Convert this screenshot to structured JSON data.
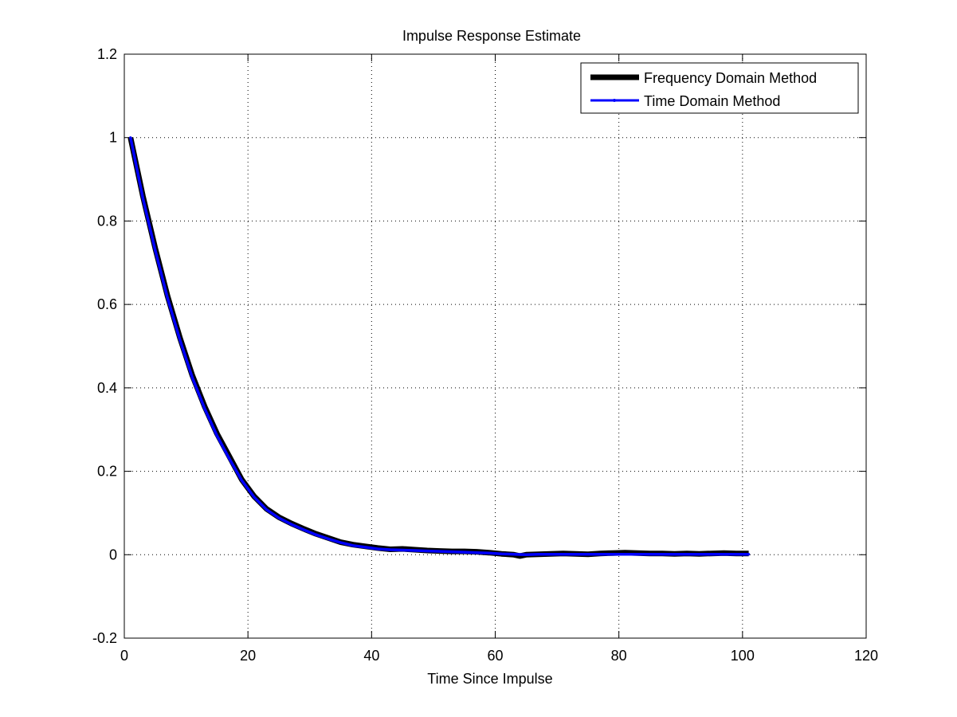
{
  "chart_data": {
    "type": "line",
    "title": "Impulse Response Estimate",
    "xlabel": "Time Since Impulse",
    "ylabel": "",
    "xlim": [
      0,
      120
    ],
    "ylim": [
      -0.2,
      1.2
    ],
    "xticks": [
      "0",
      "20",
      "40",
      "60",
      "80",
      "100",
      "120"
    ],
    "yticks": [
      "-0.2",
      "0",
      "0.2",
      "0.4",
      "0.6",
      "0.8",
      "1",
      "1.2"
    ],
    "grid": true,
    "legend_position": "top-right",
    "series": [
      {
        "name": "Frequency Domain Method",
        "color": "#000000",
        "x": [
          1,
          3,
          5,
          7,
          9,
          11,
          13,
          15,
          17,
          19,
          21,
          23,
          25,
          27,
          29,
          31,
          33,
          35,
          37,
          39,
          41,
          43,
          45,
          47,
          49,
          51,
          53,
          55,
          57,
          59,
          61,
          63,
          64,
          65,
          67,
          69,
          71,
          73,
          75,
          77,
          79,
          81,
          83,
          85,
          87,
          89,
          91,
          93,
          95,
          97,
          99,
          101
        ],
        "y": [
          1.0,
          0.86,
          0.735,
          0.62,
          0.52,
          0.43,
          0.355,
          0.29,
          0.235,
          0.18,
          0.14,
          0.11,
          0.09,
          0.075,
          0.062,
          0.05,
          0.04,
          0.03,
          0.024,
          0.02,
          0.016,
          0.013,
          0.014,
          0.012,
          0.01,
          0.009,
          0.008,
          0.008,
          0.007,
          0.005,
          0.002,
          0.0,
          -0.003,
          0.0,
          0.001,
          0.002,
          0.003,
          0.002,
          0.001,
          0.003,
          0.004,
          0.005,
          0.004,
          0.003,
          0.003,
          0.002,
          0.003,
          0.002,
          0.003,
          0.004,
          0.003,
          0.003
        ]
      },
      {
        "name": "Time Domain Method",
        "color": "#0000ff",
        "x": [
          1,
          3,
          5,
          7,
          9,
          11,
          13,
          15,
          17,
          19,
          21,
          23,
          25,
          27,
          29,
          31,
          33,
          35,
          37,
          39,
          41,
          43,
          45,
          47,
          49,
          51,
          53,
          55,
          57,
          59,
          61,
          63,
          65,
          67,
          69,
          71,
          73,
          75,
          77,
          79,
          81,
          83,
          85,
          87,
          89,
          91,
          93,
          95,
          97,
          99,
          101
        ],
        "y": [
          1.0,
          0.855,
          0.73,
          0.615,
          0.515,
          0.425,
          0.35,
          0.285,
          0.23,
          0.178,
          0.138,
          0.108,
          0.088,
          0.073,
          0.06,
          0.048,
          0.038,
          0.029,
          0.022,
          0.018,
          0.014,
          0.012,
          0.011,
          0.01,
          0.009,
          0.008,
          0.007,
          0.006,
          0.005,
          0.004,
          0.002,
          0.001,
          0.0,
          0.001,
          0.001,
          0.001,
          0.001,
          0.001,
          0.001,
          0.001,
          0.001,
          0.001,
          0.001,
          0.001,
          0.001,
          0.001,
          0.001,
          0.001,
          0.001,
          0.001,
          0.001
        ]
      }
    ]
  }
}
